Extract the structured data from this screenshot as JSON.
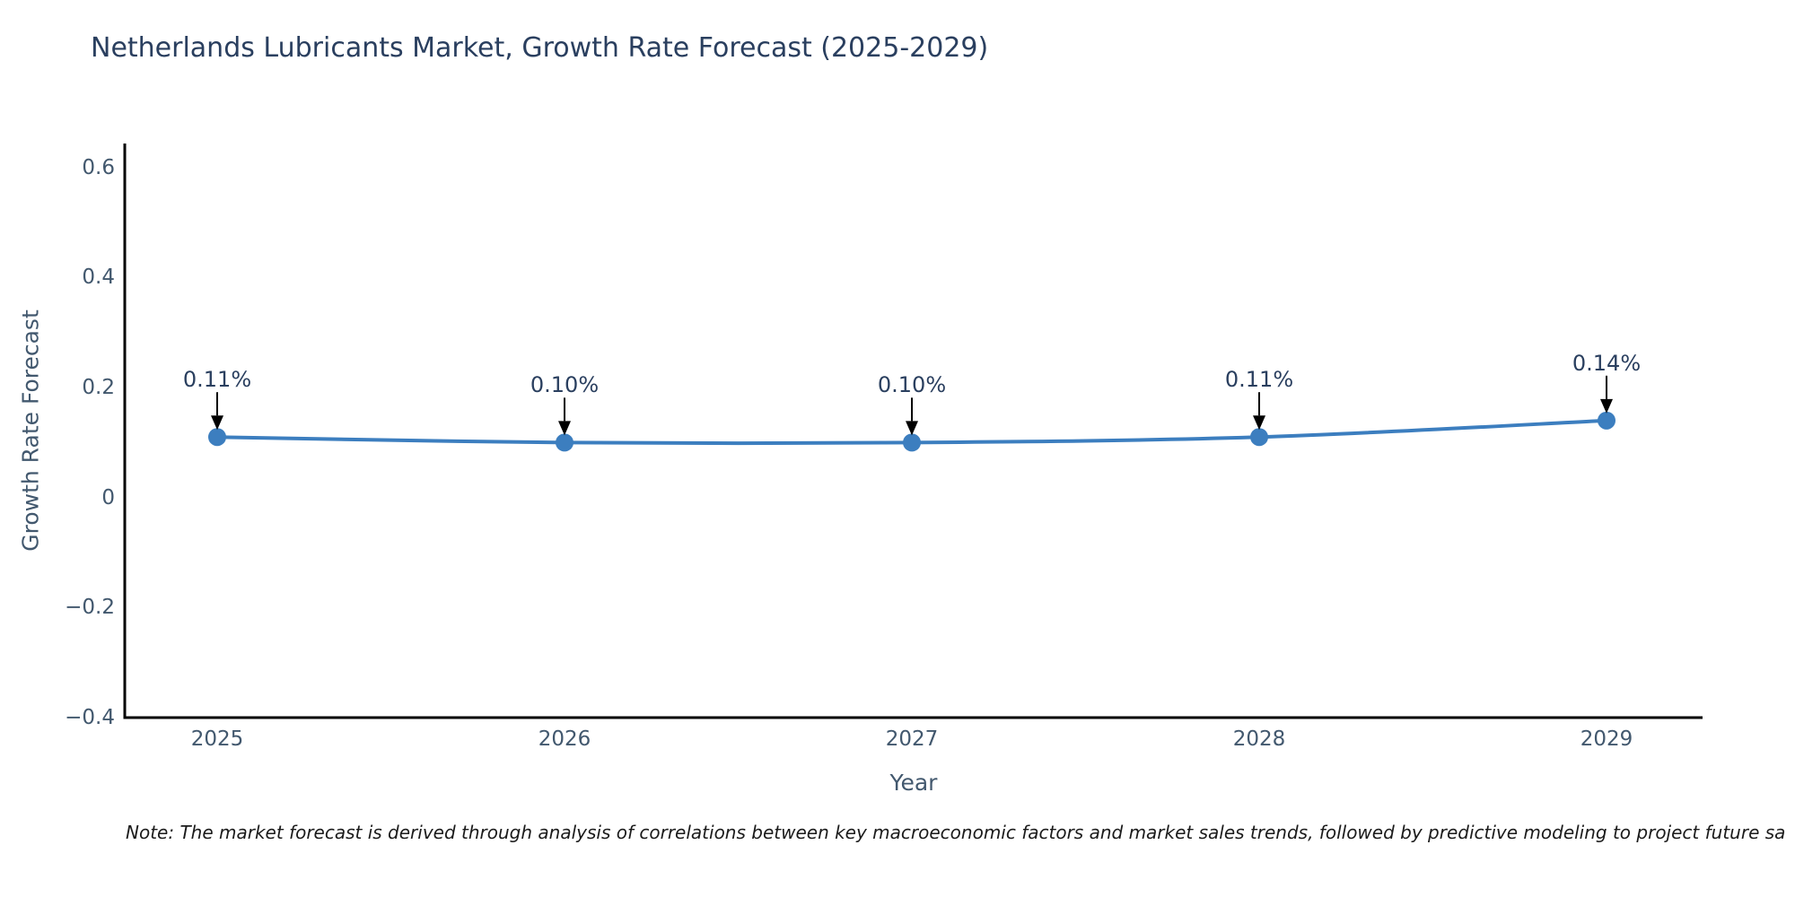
{
  "chart_data": {
    "type": "line",
    "title": "Netherlands Lubricants Market, Growth Rate Forecast (2025-2029)",
    "xlabel": "Year",
    "ylabel": "Growth Rate Forecast",
    "categories": [
      "2025",
      "2026",
      "2027",
      "2028",
      "2029"
    ],
    "values": [
      0.11,
      0.1,
      0.1,
      0.11,
      0.14
    ],
    "point_labels": [
      "0.11%",
      "0.10%",
      "0.10%",
      "0.11%",
      "0.14%"
    ],
    "ytick_values": [
      0.6,
      0.4,
      0.2,
      0,
      -0.2,
      -0.4
    ],
    "ytick_labels": [
      "0.6",
      "0.4",
      "0.2",
      "0",
      "−0.2",
      "−0.4"
    ],
    "ylim": [
      -0.4,
      0.6436
    ],
    "grid": false,
    "legend": "none",
    "line_shape": "spline",
    "line_color": "#3c7ebf",
    "marker_color": "#3c7ebf",
    "axis_color": "#000000",
    "tick_color": "#42586e",
    "title_color": "#2a3f5f",
    "annotation_text_color": "#2a3f5f",
    "arrow_color": "#000000",
    "note": "Note: The market forecast is derived through analysis of correlations between key macroeconomic factors and market sales trends, followed by predictive modeling to project future sa"
  }
}
